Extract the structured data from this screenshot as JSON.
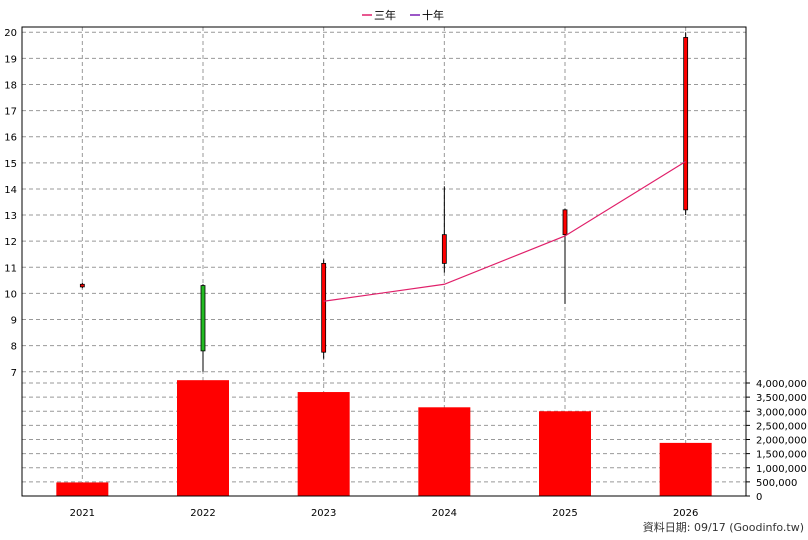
{
  "legend": [
    {
      "label": "三年",
      "color": "#e0206a"
    },
    {
      "label": "十年",
      "color": "#7a1fb4"
    }
  ],
  "footer": "資料日期: 09/17  (Goodinfo.tw)",
  "colors": {
    "up": "#ff0000",
    "down": "#22bb22",
    "volume": "#ff0000",
    "avg3": "#e0206a",
    "grid": "#999999"
  },
  "chart_data": {
    "type": "candlestick+bar",
    "categories": [
      "2021",
      "2022",
      "2023",
      "2024",
      "2025",
      "2026"
    ],
    "price": {
      "ylim": [
        6.8,
        20.2
      ],
      "ticks": [
        7,
        8,
        9,
        10,
        11,
        12,
        13,
        14,
        15,
        16,
        17,
        18,
        19,
        20
      ],
      "candles": [
        {
          "x": "2021",
          "open": 10.25,
          "close": 10.35,
          "high": 10.4,
          "low": 10.2
        },
        {
          "x": "2022",
          "open": 10.3,
          "close": 7.8,
          "high": 10.35,
          "low": 7.0
        },
        {
          "x": "2023",
          "open": 7.75,
          "close": 11.15,
          "high": 11.3,
          "low": 7.5
        },
        {
          "x": "2024",
          "open": 11.15,
          "close": 12.25,
          "high": 14.1,
          "low": 10.8
        },
        {
          "x": "2025",
          "open": 12.25,
          "close": 13.2,
          "high": 13.25,
          "low": 9.6
        },
        {
          "x": "2026",
          "open": 13.2,
          "close": 19.8,
          "high": 20.0,
          "low": 13.0
        }
      ]
    },
    "series": [
      {
        "name": "三年",
        "x": [
          "2023",
          "2024",
          "2025",
          "2026"
        ],
        "values": [
          9.7,
          10.35,
          12.2,
          15.05
        ]
      }
    ],
    "volume": {
      "ylim": [
        0,
        4000000
      ],
      "ticks": [
        0,
        500000,
        1000000,
        1500000,
        2000000,
        2500000,
        3000000,
        3500000,
        4000000
      ],
      "tick_labels": [
        "0",
        "500,000",
        "1,000,000",
        "1,500,000",
        "2,000,000",
        "2,500,000",
        "3,000,000",
        "3,500,000",
        "4,000,000"
      ],
      "values": [
        480000,
        4100000,
        3680000,
        3140000,
        3000000,
        1880000
      ]
    },
    "grid": true,
    "legend_position": "top-center"
  }
}
